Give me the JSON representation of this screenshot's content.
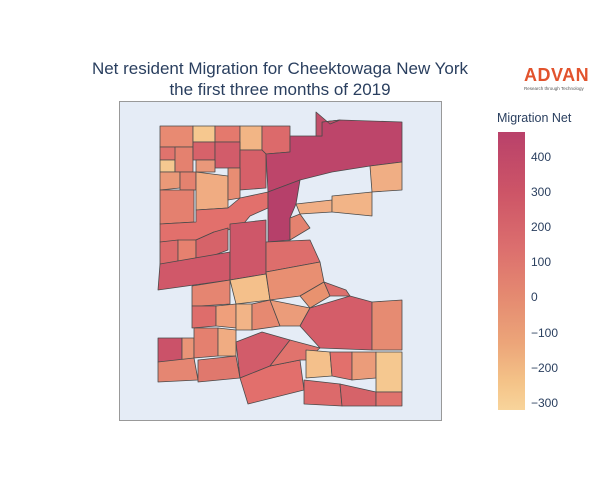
{
  "title_line1": "Net resident Migration for Cheektowaga New York",
  "title_line2": "the first three months of 2019",
  "logo": {
    "name": "ADVAN",
    "tagline": "Research through Technology"
  },
  "colorbar": {
    "title": "Migration Net",
    "ticks": [
      "400",
      "300",
      "200",
      "100",
      "0",
      "−100",
      "−200",
      "−300"
    ],
    "range": [
      -320,
      470
    ],
    "colorscale": [
      "#f8d49b",
      "#eca579",
      "#e48870",
      "#dc6f6e",
      "#cd5567",
      "#b9416a"
    ]
  }
}
